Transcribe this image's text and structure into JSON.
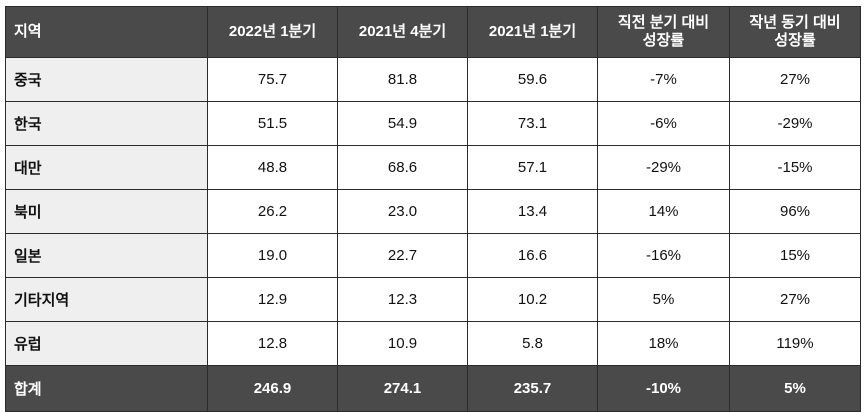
{
  "headers": [
    "지역",
    "2022년 1분기",
    "2021년 4분기",
    "2021년 1분기",
    [
      "직전 분기 대비",
      "성장률"
    ],
    [
      "작년 동기 대비",
      "성장률"
    ]
  ],
  "rows": [
    [
      "중국",
      "75.7",
      "81.8",
      "59.6",
      "-7%",
      "27%"
    ],
    [
      "한국",
      "51.5",
      "54.9",
      "73.1",
      "-6%",
      "-29%"
    ],
    [
      "대만",
      "48.8",
      "68.6",
      "57.1",
      "-29%",
      "-15%"
    ],
    [
      "북미",
      "26.2",
      "23.0",
      "13.4",
      "14%",
      "96%"
    ],
    [
      "일본",
      "19.0",
      "22.7",
      "16.6",
      "-16%",
      "15%"
    ],
    [
      "기타지역",
      "12.9",
      "12.3",
      "10.2",
      "5%",
      "27%"
    ],
    [
      "유럽",
      "12.8",
      "10.9",
      "5.8",
      "18%",
      "119%"
    ]
  ],
  "total": [
    "합계",
    "246.9",
    "274.1",
    "235.7",
    "-10%",
    "5%"
  ],
  "colors": {
    "header_bg": "#4a4a4a",
    "region_bg": "#efefef",
    "border": "#2b2b2b"
  }
}
